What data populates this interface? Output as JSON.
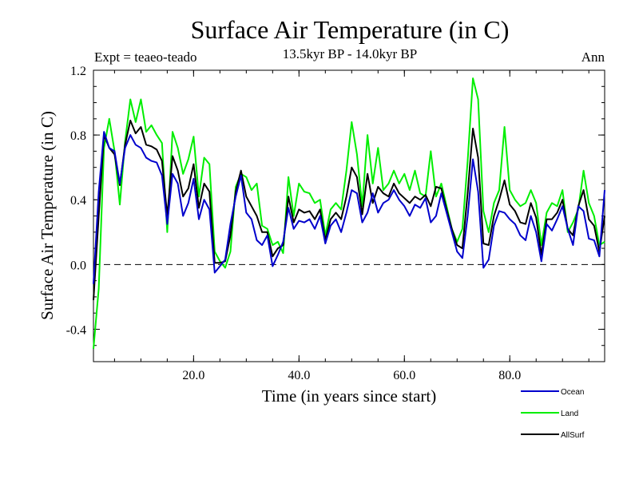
{
  "chart_data": {
    "type": "line",
    "title": "Surface Air Temperature (in C)",
    "subtitle": "13.5kyr BP - 14.0kyr BP",
    "experiment_label": "Expt = teaeo-teado",
    "season_label": "Ann",
    "xlabel": "Time (in years since start)",
    "ylabel": "Surface Air Temperature (in C)",
    "xlim": [
      1,
      98
    ],
    "ylim": [
      -0.6,
      1.2
    ],
    "xticks": [
      20,
      40,
      60,
      80
    ],
    "xtick_labels": [
      "20.0",
      "40.0",
      "60.0",
      "80.0"
    ],
    "yticks": [
      -0.4,
      0.0,
      0.4,
      0.8,
      1.2
    ],
    "ytick_labels": [
      "-0.4",
      "0.0",
      "0.4",
      "0.8",
      "1.2"
    ],
    "reference_line": 0.0,
    "x": [
      1,
      2,
      3,
      4,
      5,
      6,
      7,
      8,
      9,
      10,
      11,
      12,
      13,
      14,
      15,
      16,
      17,
      18,
      19,
      20,
      21,
      22,
      23,
      24,
      25,
      26,
      27,
      28,
      29,
      30,
      31,
      32,
      33,
      34,
      35,
      36,
      37,
      38,
      39,
      40,
      41,
      42,
      43,
      44,
      45,
      46,
      47,
      48,
      49,
      50,
      51,
      52,
      53,
      54,
      55,
      56,
      57,
      58,
      59,
      60,
      61,
      62,
      63,
      64,
      65,
      66,
      67,
      68,
      69,
      70,
      71,
      72,
      73,
      74,
      75,
      76,
      77,
      78,
      79,
      80,
      81,
      82,
      83,
      84,
      85,
      86,
      87,
      88,
      89,
      90,
      91,
      92,
      93,
      94,
      95,
      96,
      97,
      98
    ],
    "series": [
      {
        "name": "Ocean",
        "color": "#0000cc",
        "values": [
          -0.12,
          0.45,
          0.82,
          0.72,
          0.7,
          0.5,
          0.72,
          0.8,
          0.74,
          0.72,
          0.66,
          0.64,
          0.63,
          0.55,
          0.25,
          0.56,
          0.5,
          0.3,
          0.38,
          0.53,
          0.28,
          0.4,
          0.34,
          -0.05,
          -0.01,
          0.03,
          0.25,
          0.42,
          0.55,
          0.32,
          0.28,
          0.15,
          0.12,
          0.18,
          -0.01,
          0.06,
          0.14,
          0.35,
          0.22,
          0.27,
          0.26,
          0.28,
          0.22,
          0.3,
          0.13,
          0.24,
          0.28,
          0.2,
          0.32,
          0.46,
          0.44,
          0.26,
          0.32,
          0.44,
          0.32,
          0.38,
          0.4,
          0.46,
          0.4,
          0.36,
          0.3,
          0.37,
          0.35,
          0.41,
          0.26,
          0.3,
          0.44,
          0.32,
          0.2,
          0.08,
          0.04,
          0.3,
          0.65,
          0.45,
          -0.02,
          0.03,
          0.24,
          0.33,
          0.32,
          0.28,
          0.25,
          0.18,
          0.15,
          0.3,
          0.2,
          0.02,
          0.25,
          0.21,
          0.28,
          0.36,
          0.22,
          0.12,
          0.36,
          0.33,
          0.16,
          0.15,
          0.05,
          0.46
        ]
      },
      {
        "name": "Land",
        "color": "#00ee00",
        "values": [
          -0.52,
          -0.15,
          0.72,
          0.9,
          0.7,
          0.37,
          0.76,
          1.02,
          0.88,
          1.02,
          0.82,
          0.86,
          0.8,
          0.75,
          0.2,
          0.82,
          0.72,
          0.56,
          0.65,
          0.79,
          0.42,
          0.66,
          0.62,
          0.08,
          0.02,
          -0.02,
          0.08,
          0.48,
          0.56,
          0.54,
          0.46,
          0.5,
          0.24,
          0.22,
          0.12,
          0.14,
          0.07,
          0.54,
          0.3,
          0.5,
          0.45,
          0.44,
          0.38,
          0.4,
          0.18,
          0.34,
          0.38,
          0.34,
          0.58,
          0.88,
          0.68,
          0.36,
          0.8,
          0.5,
          0.72,
          0.46,
          0.5,
          0.58,
          0.5,
          0.56,
          0.46,
          0.58,
          0.44,
          0.42,
          0.7,
          0.42,
          0.5,
          0.36,
          0.22,
          0.14,
          0.22,
          0.64,
          1.15,
          1.02,
          0.33,
          0.2,
          0.38,
          0.46,
          0.85,
          0.46,
          0.4,
          0.36,
          0.38,
          0.46,
          0.38,
          0.12,
          0.32,
          0.38,
          0.36,
          0.46,
          0.2,
          0.26,
          0.34,
          0.58,
          0.38,
          0.3,
          0.12,
          0.14
        ]
      },
      {
        "name": "AllSurf",
        "color": "#000000",
        "values": [
          -0.22,
          0.3,
          0.8,
          0.72,
          0.68,
          0.49,
          0.74,
          0.89,
          0.81,
          0.85,
          0.74,
          0.73,
          0.71,
          0.64,
          0.3,
          0.67,
          0.58,
          0.42,
          0.47,
          0.62,
          0.35,
          0.5,
          0.45,
          0.01,
          0.01,
          0.02,
          0.18,
          0.45,
          0.58,
          0.42,
          0.36,
          0.3,
          0.2,
          0.2,
          0.05,
          0.1,
          0.12,
          0.42,
          0.26,
          0.34,
          0.32,
          0.33,
          0.28,
          0.34,
          0.15,
          0.28,
          0.32,
          0.28,
          0.42,
          0.6,
          0.54,
          0.31,
          0.56,
          0.38,
          0.48,
          0.44,
          0.42,
          0.5,
          0.44,
          0.41,
          0.38,
          0.42,
          0.4,
          0.43,
          0.36,
          0.48,
          0.47,
          0.34,
          0.22,
          0.12,
          0.1,
          0.44,
          0.84,
          0.66,
          0.13,
          0.12,
          0.3,
          0.4,
          0.52,
          0.37,
          0.33,
          0.26,
          0.25,
          0.38,
          0.29,
          0.06,
          0.28,
          0.28,
          0.32,
          0.4,
          0.22,
          0.18,
          0.36,
          0.46,
          0.28,
          0.24,
          0.08,
          0.3
        ]
      }
    ]
  }
}
